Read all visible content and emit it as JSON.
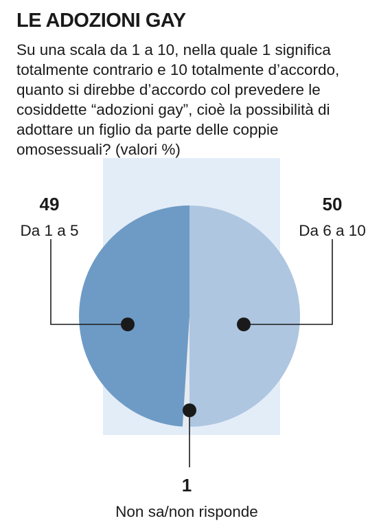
{
  "title": "LE ADOZIONI GAY",
  "subtitle": "Su una scala da 1 a 10, nella quale 1 significa totalmente contrario e 10 totalmente d’accordo, quanto si direbbe d’accordo col prevedere le cosiddette “adozioni gay”, cioè la possibilità di adottare un figlio da parte delle coppie omosessuali? (valori %)",
  "colors": {
    "backdrop": "#e3edf8",
    "slice_1_5": "#6e9bc5",
    "slice_6_10": "#aec6e0",
    "slice_none": "#e6ebf1",
    "marker": "#1a1a1a"
  },
  "chart_data": {
    "type": "pie",
    "title": "LE ADOZIONI GAY",
    "unit": "%",
    "slices": [
      {
        "label": "Da 6 a 10",
        "value": 50
      },
      {
        "label": "Non sa/non risponde",
        "value": 1
      },
      {
        "label": "Da 1 a 5",
        "value": 49
      }
    ]
  }
}
